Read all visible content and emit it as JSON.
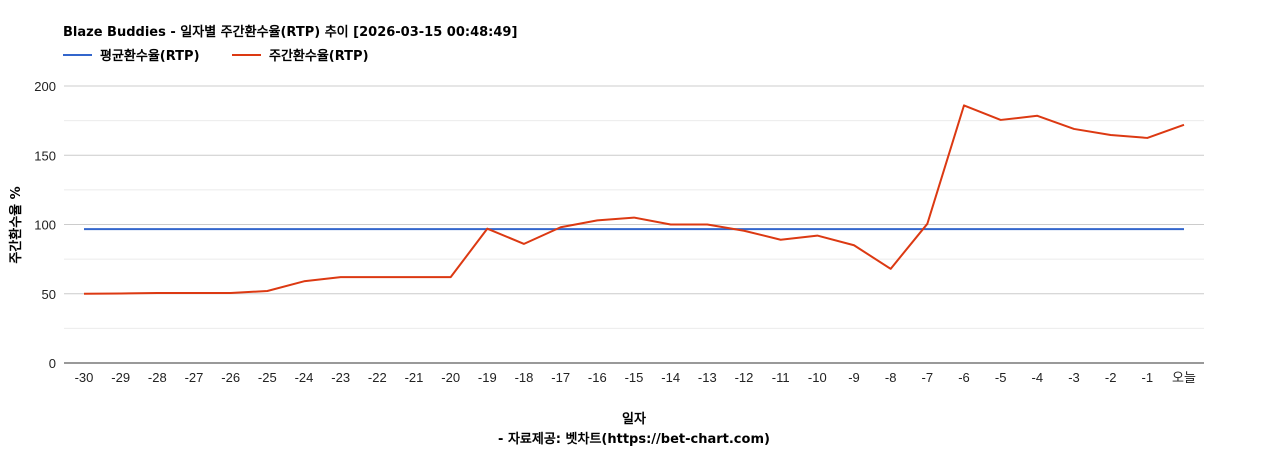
{
  "chart_data": {
    "type": "line",
    "title": "Blaze Buddies - 일자별 주간환수율(RTP) 추이 [2026-03-15 00:48:49]",
    "xlabel": "일자",
    "ylabel": "주간환수율 %",
    "footer": "- 자료제공: 벳차트(https://bet-chart.com)",
    "categories": [
      "-30",
      "-29",
      "-28",
      "-27",
      "-26",
      "-25",
      "-24",
      "-23",
      "-22",
      "-21",
      "-20",
      "-19",
      "-18",
      "-17",
      "-16",
      "-15",
      "-14",
      "-13",
      "-12",
      "-11",
      "-10",
      "-9",
      "-8",
      "-7",
      "-6",
      "-5",
      "-4",
      "-3",
      "-2",
      "-1",
      "오늘"
    ],
    "ylim": [
      0,
      200
    ],
    "yticks": [
      0,
      50,
      100,
      150,
      200
    ],
    "grid": true,
    "legend_position": "top-left",
    "series": [
      {
        "name": "평균환수율(RTP)",
        "color": "#3366cc",
        "values": [
          96.7,
          96.7,
          96.7,
          96.7,
          96.7,
          96.7,
          96.7,
          96.7,
          96.7,
          96.7,
          96.7,
          96.7,
          96.7,
          96.7,
          96.7,
          96.7,
          96.7,
          96.7,
          96.7,
          96.7,
          96.7,
          96.7,
          96.7,
          96.7,
          96.7,
          96.7,
          96.7,
          96.7,
          96.7,
          96.7,
          96.7
        ]
      },
      {
        "name": "주간환수율(RTP)",
        "color": "#dc3912",
        "values": [
          50,
          50.2,
          50.5,
          50.5,
          50.5,
          52,
          59,
          62,
          62,
          62,
          62,
          97,
          86,
          98,
          103,
          105,
          100,
          100,
          95.5,
          89,
          92,
          85,
          68,
          100.5,
          186,
          175.5,
          178.5,
          169,
          164.6,
          162.5,
          172
        ]
      }
    ]
  }
}
